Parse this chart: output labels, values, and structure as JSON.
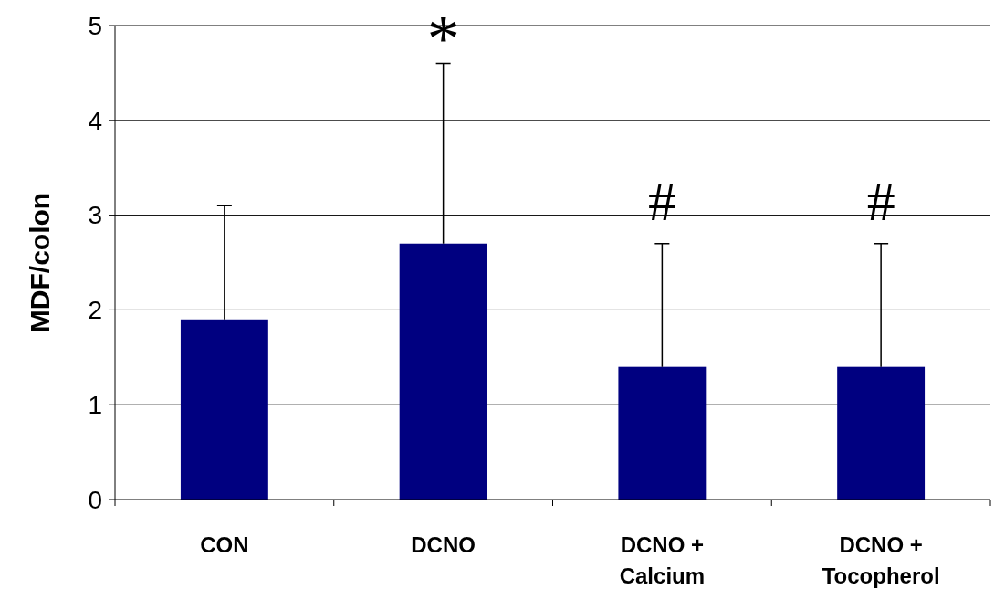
{
  "chart_data": {
    "type": "bar",
    "ylabel": "MDF/colon",
    "categories": [
      "CON",
      "DCNO",
      "DCNO + Calcium",
      "DCNO + Tocopherol"
    ],
    "values": [
      1.9,
      2.7,
      1.4,
      1.4
    ],
    "color": "#000080",
    "errors": [
      [
        1.9,
        3.1
      ],
      [
        2.7,
        4.6
      ],
      [
        1.4,
        2.7
      ],
      [
        1.4,
        2.7
      ]
    ],
    "ylim": [
      0,
      5
    ],
    "yticks": [
      0,
      1,
      2,
      3,
      4,
      5
    ],
    "grid": "y",
    "legend": false,
    "annotations": [
      "*",
      "#",
      "#"
    ]
  }
}
